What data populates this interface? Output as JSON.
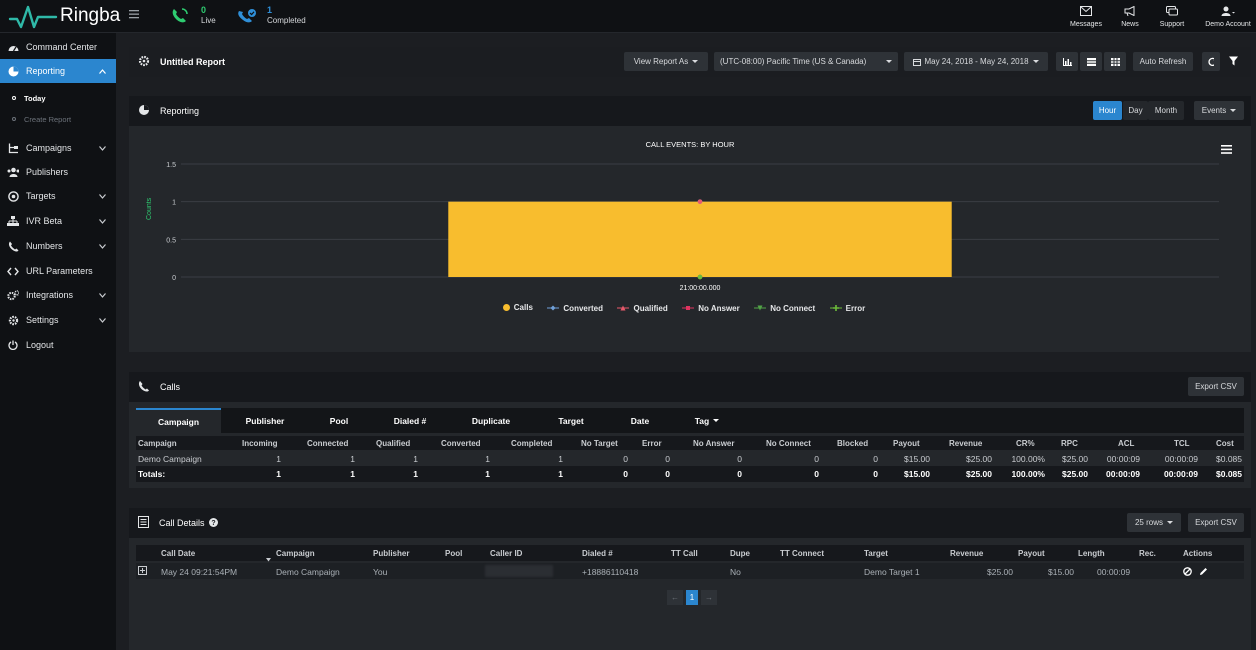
{
  "app": {
    "name": "Ringba"
  },
  "topbar": {
    "live_count": "0",
    "live_label": "Live",
    "completed_count": "1",
    "completed_label": "Completed",
    "links": [
      {
        "label": "Messages",
        "icon": "envelope-icon"
      },
      {
        "label": "News",
        "icon": "megaphone-icon"
      },
      {
        "label": "Support",
        "icon": "chat-icon"
      },
      {
        "label": "Demo Account",
        "icon": "user-icon"
      }
    ]
  },
  "sidebar": {
    "items": [
      {
        "label": "Command Center",
        "icon": "dashboard-icon"
      },
      {
        "label": "Reporting",
        "icon": "pie-chart-icon",
        "active": true
      },
      {
        "label": "Campaigns",
        "icon": "sitemap-icon"
      },
      {
        "label": "Publishers",
        "icon": "users-icon"
      },
      {
        "label": "Targets",
        "icon": "target-icon"
      },
      {
        "label": "IVR Beta",
        "icon": "org-chart-icon"
      },
      {
        "label": "Numbers",
        "icon": "phone-icon"
      },
      {
        "label": "URL Parameters",
        "icon": "code-icon"
      },
      {
        "label": "Integrations",
        "icon": "cogs-icon"
      },
      {
        "label": "Settings",
        "icon": "gear-icon"
      },
      {
        "label": "Logout",
        "icon": "power-icon"
      }
    ],
    "sub_items": [
      {
        "label": "Today",
        "active": true
      },
      {
        "label": "Create Report",
        "active": false
      }
    ]
  },
  "report_bar": {
    "title": "Untitled Report",
    "view_as": "View Report As",
    "timezone": "(UTC-08:00) Pacific Time (US & Canada)",
    "date_range": "May 24, 2018 - May 24, 2018",
    "auto_refresh": "Auto Refresh"
  },
  "reporting": {
    "title": "Reporting",
    "granularity": [
      "Hour",
      "Day",
      "Month"
    ],
    "active_granularity": "Hour",
    "events_label": "Events"
  },
  "chart_data": {
    "type": "bar",
    "title": "CALL EVENTS: BY HOUR",
    "ylabel": "Counts",
    "xlabel": "",
    "ylim": [
      0,
      1.5
    ],
    "yticks": [
      "0",
      "0.5",
      "1",
      "1.5"
    ],
    "categories": [
      "21:00:00.000"
    ],
    "series": [
      {
        "name": "Calls",
        "type": "bar",
        "values": [
          1
        ],
        "color": "#f8bd2e"
      },
      {
        "name": "Converted",
        "type": "line",
        "values": [
          1
        ],
        "color": "#6f9fd8"
      },
      {
        "name": "Qualified",
        "type": "line",
        "values": [
          1
        ],
        "color": "#e8596b"
      },
      {
        "name": "No Answer",
        "type": "line",
        "values": [
          0
        ],
        "color": "#e0335f"
      },
      {
        "name": "No Connect",
        "type": "line",
        "values": [
          0
        ],
        "color": "#52a447"
      },
      {
        "name": "Error",
        "type": "line",
        "values": [
          0
        ],
        "color": "#6dbb3a"
      }
    ],
    "grid": true,
    "legend": "bottom"
  },
  "calls": {
    "title": "Calls",
    "export_label": "Export CSV",
    "tabs": [
      "Campaign",
      "Publisher",
      "Pool",
      "Dialed #",
      "Duplicate",
      "Target",
      "Date",
      "Tag"
    ],
    "active_tab": "Campaign",
    "columns": [
      "Campaign",
      "Incoming",
      "Connected",
      "Qualified",
      "Converted",
      "Completed",
      "No Target",
      "Error",
      "No Answer",
      "No Connect",
      "Blocked",
      "Payout",
      "Revenue",
      "CR%",
      "RPC",
      "ACL",
      "TCL",
      "Cost"
    ],
    "rows": [
      [
        "Demo Campaign",
        "1",
        "1",
        "1",
        "1",
        "1",
        "0",
        "0",
        "0",
        "0",
        "0",
        "$15.00",
        "$25.00",
        "100.00%",
        "$25.00",
        "00:00:09",
        "00:00:09",
        "$0.085"
      ]
    ],
    "totals": [
      "Totals:",
      "1",
      "1",
      "1",
      "1",
      "1",
      "0",
      "0",
      "0",
      "0",
      "0",
      "$15.00",
      "$25.00",
      "100.00%",
      "$25.00",
      "00:00:09",
      "00:00:09",
      "$0.085"
    ]
  },
  "call_details": {
    "title": "Call Details",
    "rows_label": "25 rows",
    "export_label": "Export CSV",
    "columns": [
      "Call Date",
      "Campaign",
      "Publisher",
      "Pool",
      "Caller ID",
      "Dialed #",
      "TT Call",
      "Dupe",
      "TT Connect",
      "Target",
      "Revenue",
      "Payout",
      "Length",
      "Rec.",
      "Actions"
    ],
    "rows": [
      {
        "call_date": "May 24 09:21:54PM",
        "campaign": "Demo Campaign",
        "publisher": "You",
        "pool": "",
        "caller_id": "",
        "dialed": "+18886110418",
        "tt_call": "",
        "dupe": "No",
        "tt_connect": "",
        "target": "Demo Target 1",
        "revenue": "$25.00",
        "payout": "$15.00",
        "length": "00:00:09",
        "rec": ""
      }
    ],
    "pagination": {
      "prev": "←",
      "current": "1",
      "next": "→"
    }
  }
}
